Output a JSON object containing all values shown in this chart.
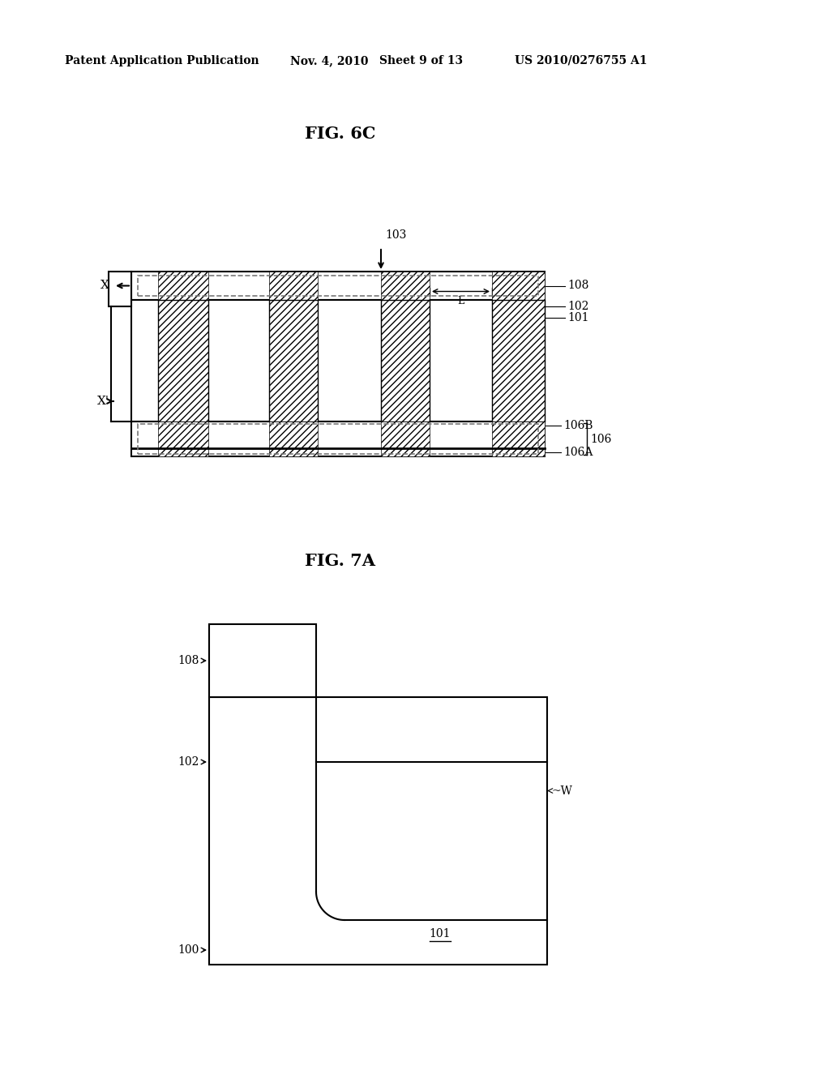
{
  "bg_color": "#ffffff",
  "header_text": "Patent Application Publication",
  "header_date": "Nov. 4, 2010",
  "header_sheet": "Sheet 9 of 13",
  "header_patent": "US 2010/0276755 A1",
  "fig6c_title": "FIG. 6C",
  "fig7a_title": "FIG. 7A",
  "line_color": "#000000"
}
